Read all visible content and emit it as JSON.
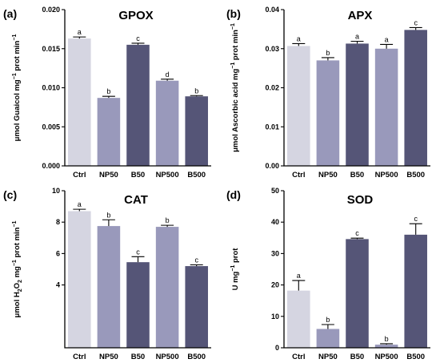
{
  "chart_data": [
    {
      "type": "bar",
      "panel_label": "(a)",
      "title": "GPOX",
      "ylabel": [
        "μmol Guaicol mg",
        "−1",
        " prot min",
        "−1"
      ],
      "categories": [
        "Ctrl",
        "NP50",
        "B50",
        "NP500",
        "B500"
      ],
      "values": [
        0.0163,
        0.0087,
        0.0155,
        0.0109,
        0.0089
      ],
      "errors": [
        0.0002,
        0.0002,
        0.0002,
        0.0002,
        0.0001
      ],
      "significance": [
        "a",
        "b",
        "c",
        "d",
        "b"
      ],
      "ylim": [
        0,
        0.02
      ],
      "yticks": [
        0,
        0.005,
        0.01,
        0.015,
        0.02
      ],
      "ytick_labels": [
        "0.000",
        "0.005",
        "0.010",
        "0.015",
        "0.020"
      ],
      "grid": false
    },
    {
      "type": "bar",
      "panel_label": "(b)",
      "title": "APX",
      "ylabel": [
        "μmol Ascorbic acid mg",
        "−1",
        " prot min",
        "−1"
      ],
      "categories": [
        "Ctrl",
        "NP50",
        "B50",
        "NP500",
        "B500"
      ],
      "values": [
        0.0307,
        0.027,
        0.0313,
        0.03,
        0.0348
      ],
      "errors": [
        0.0006,
        0.0007,
        0.0006,
        0.0011,
        0.0006
      ],
      "significance": [
        "a",
        "b",
        "a",
        "a",
        "c"
      ],
      "ylim": [
        0,
        0.04
      ],
      "yticks": [
        0,
        0.01,
        0.02,
        0.03,
        0.04
      ],
      "ytick_labels": [
        "0.00",
        "0.01",
        "0.02",
        "0.03",
        "0.04"
      ],
      "grid": false
    },
    {
      "type": "bar",
      "panel_label": "(c)",
      "title": "CAT",
      "ylabel": [
        "μmol H",
        "2",
        "O",
        "2",
        " mg",
        "−1",
        " prot min",
        "−1"
      ],
      "categories": [
        "Ctrl",
        "NP50",
        "B50",
        "NP500",
        "B500"
      ],
      "values": [
        8.7,
        7.75,
        5.45,
        7.7,
        5.2
      ],
      "errors": [
        0.12,
        0.4,
        0.35,
        0.1,
        0.08
      ],
      "significance": [
        "a",
        "b",
        "c",
        "b",
        "c"
      ],
      "ylim": [
        0,
        10
      ],
      "yticks": [
        4,
        6,
        8,
        10
      ],
      "ytick_labels": [
        "4",
        "6",
        "8",
        "10"
      ],
      "grid": false
    },
    {
      "type": "bar",
      "panel_label": "(d)",
      "title": "SOD",
      "ylabel": [
        "U mg",
        "−1",
        " prot"
      ],
      "categories": [
        "Ctrl",
        "NP50",
        "B50",
        "NP500",
        "B500"
      ],
      "values": [
        18.2,
        6.0,
        34.6,
        1.0,
        36.0
      ],
      "errors": [
        3.2,
        1.4,
        0.3,
        0.3,
        3.5
      ],
      "significance": [
        "a",
        "b",
        "c",
        "b",
        "c"
      ],
      "ylim": [
        0,
        50
      ],
      "yticks": [
        0,
        10,
        20,
        30,
        40,
        50
      ],
      "ytick_labels": [
        "0",
        "10",
        "20",
        "30",
        "40",
        "50"
      ],
      "grid": false
    }
  ],
  "colors": {
    "bars": [
      "#d5d5e1",
      "#9999bb",
      "#555577",
      "#9999bb",
      "#555577"
    ],
    "axis": "#000000",
    "background": "#ffffff"
  }
}
